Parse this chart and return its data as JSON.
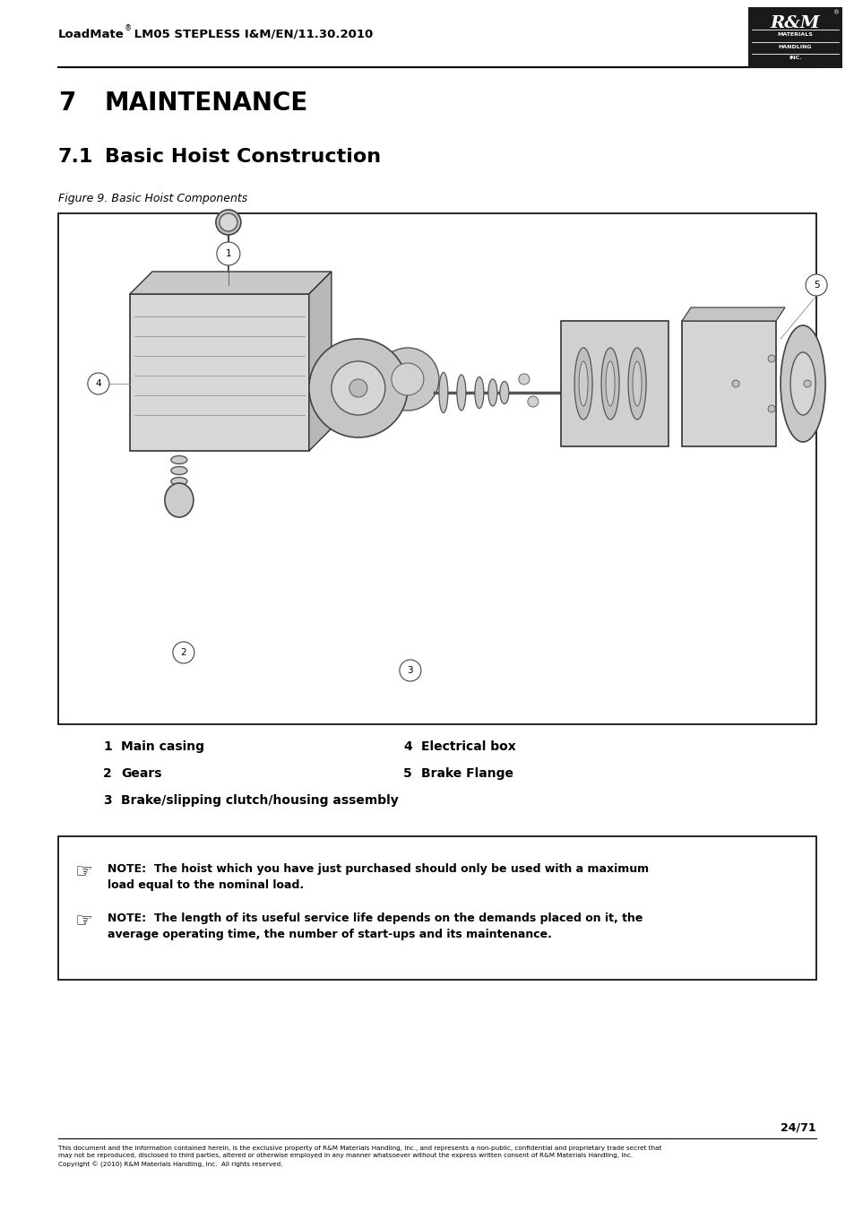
{
  "header_bold": "LoadMate",
  "header_super": "®",
  "header_rest": " LM05 STEPLESS I&M/EN/11.30.2010",
  "logo_box_color": "#1a1a1a",
  "section_number": "7",
  "section_title": "MAINTENANCE",
  "subsection_number": "7.1",
  "subsection_title": "Basic Hoist Construction",
  "figure_caption": "Figure 9. Basic Hoist Components",
  "legend_col1": [
    {
      "num": "1",
      "desc": "Main casing"
    },
    {
      "num": "2",
      "desc": "Gears"
    },
    {
      "num": "3",
      "desc": "Brake/slipping clutch/housing assembly"
    }
  ],
  "legend_col2": [
    {
      "num": "4",
      "desc": "Electrical box"
    },
    {
      "num": "5",
      "desc": "Brake Flange"
    }
  ],
  "note1_text": "NOTE:  The hoist which you have just purchased should only be used with a maximum\nload equal to the nominal load.",
  "note2_text": "NOTE:  The length of its useful service life depends on the demands placed on it, the\naverage operating time, the number of start-ups and its maintenance.",
  "page_number": "24/71",
  "footer_text": "This document and the information contained herein, is the exclusive property of R&M Materials Handling, Inc., and represents a non-public, confidential and proprietary trade secret that\nmay not be reproduced, disclosed to third parties, altered or otherwise employed in any manner whatsoever without the express written consent of R&M Materials Handling, Inc.\nCopyright © (2010) R&M Materials Handling, Inc.  All rights reserved.",
  "bg_color": "#ffffff",
  "ml": 0.068,
  "mr": 0.955
}
